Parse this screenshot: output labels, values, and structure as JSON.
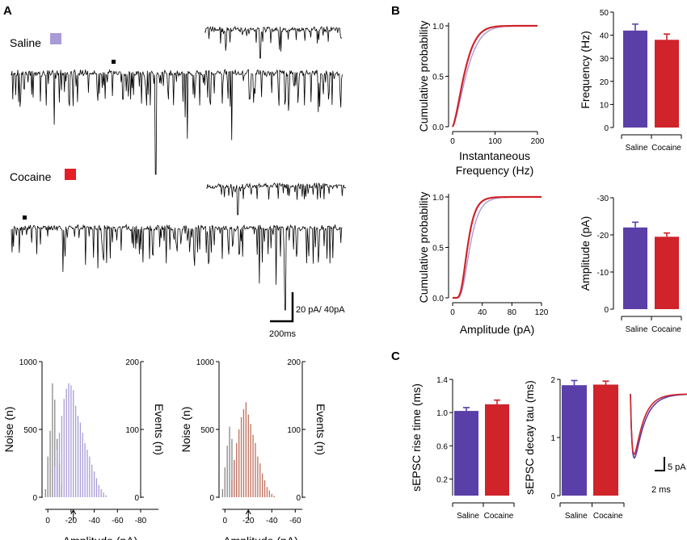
{
  "panels": {
    "a": "A",
    "b": "B",
    "c": "C"
  },
  "colors": {
    "saline": "#5b3fa8",
    "saline_light": "#a99bd6",
    "cocaine": "#d0232a",
    "cocaine_light": "#c0705e",
    "noise": "#888888"
  },
  "traces": {
    "saline_label": "Saline",
    "cocaine_label": "Cocaine",
    "scale_bar": {
      "y_label": "20 pA/ 40pA",
      "x_label": "200ms"
    }
  },
  "chart_data": [
    {
      "id": "hist_saline",
      "type": "bar",
      "xlabel": "Amplitude (pA)",
      "ylabel": "Noise (n)",
      "y2label": "Events (n)",
      "xticks": [
        "0",
        "-20",
        "-40",
        "-60",
        "-80"
      ],
      "yticks": [
        "0",
        "500",
        "1000"
      ],
      "y2ticks": [
        "0",
        "100",
        "200"
      ],
      "xlim": [
        5,
        -80
      ],
      "ylim": [
        0,
        1000
      ],
      "y2lim": [
        0,
        200
      ],
      "arrow_at": -22,
      "noise": {
        "x": [
          2,
          0,
          -2,
          -4,
          -6,
          -8,
          -10,
          -12
        ],
        "values": [
          60,
          300,
          490,
          840,
          720,
          430,
          250,
          90
        ]
      },
      "events": {
        "color": "saline_light",
        "x": [
          -6,
          -8,
          -10,
          -12,
          -14,
          -16,
          -18,
          -20,
          -22,
          -24,
          -26,
          -28,
          -30,
          -32,
          -34,
          -36,
          -38,
          -40,
          -42,
          -44,
          -46,
          -48,
          -50
        ],
        "values": [
          45,
          70,
          95,
          120,
          145,
          160,
          168,
          165,
          158,
          135,
          120,
          110,
          95,
          80,
          70,
          60,
          48,
          38,
          28,
          18,
          12,
          7,
          3
        ]
      }
    },
    {
      "id": "hist_cocaine",
      "type": "bar",
      "xlabel": "Amplitude (pA)",
      "ylabel": "Noise (n)",
      "y2label": "Events (n)",
      "xticks": [
        "0",
        "-20",
        "-40",
        "-60"
      ],
      "yticks": [
        "0",
        "500",
        "1000"
      ],
      "y2ticks": [
        "0",
        "100",
        "200"
      ],
      "xlim": [
        5,
        -66
      ],
      "ylim": [
        0,
        1000
      ],
      "y2lim": [
        0,
        200
      ],
      "arrow_at": -20,
      "noise": {
        "x": [
          2,
          0,
          -2,
          -4,
          -6,
          -8,
          -10
        ],
        "values": [
          60,
          220,
          380,
          520,
          430,
          270,
          120
        ]
      },
      "events": {
        "color": "cocaine_light",
        "x": [
          -6,
          -8,
          -10,
          -12,
          -14,
          -16,
          -18,
          -20,
          -22,
          -24,
          -26,
          -28,
          -30,
          -32,
          -34,
          -36,
          -38,
          -40,
          -42
        ],
        "values": [
          25,
          55,
          80,
          100,
          118,
          130,
          140,
          122,
          108,
          92,
          80,
          60,
          50,
          35,
          25,
          15,
          10,
          5,
          2
        ]
      }
    },
    {
      "id": "cdf_frequency",
      "type": "line",
      "xlabel": "Instantaneous Frequency (Hz)",
      "ylabel": "Cumulative probability",
      "xticks": [
        "0",
        "100",
        "200"
      ],
      "yticks": [
        "0.0",
        "0.5",
        "1.0"
      ],
      "xlim": [
        0,
        200
      ],
      "ylim": [
        0,
        1
      ],
      "series": [
        {
          "name": "Saline",
          "color": "saline_light",
          "k": 40
        },
        {
          "name": "Cocaine",
          "color": "cocaine",
          "k": 34
        }
      ]
    },
    {
      "id": "bar_frequency",
      "type": "bar",
      "ylabel": "Frequency (Hz)",
      "categories": [
        "Saline",
        "Cocaine"
      ],
      "values": [
        42,
        38
      ],
      "errors": [
        2.8,
        2.5
      ],
      "yticks": [
        "0",
        "10",
        "20",
        "30",
        "40",
        "50"
      ],
      "ylim": [
        0,
        50
      ],
      "colors": [
        "saline",
        "cocaine"
      ]
    },
    {
      "id": "cdf_amplitude",
      "type": "line",
      "xlabel": "Amplitude (pA)",
      "ylabel": "Cumulative probability",
      "xticks": [
        "0",
        "40",
        "80",
        "120"
      ],
      "yticks": [
        "0.0",
        "0.5",
        "1.0"
      ],
      "xlim": [
        0,
        120
      ],
      "ylim": [
        0,
        1
      ],
      "series": [
        {
          "name": "Saline",
          "color": "saline_light",
          "mu": 3.15,
          "sigma": 0.42
        },
        {
          "name": "Cocaine",
          "color": "cocaine",
          "mu": 3.0,
          "sigma": 0.4
        }
      ]
    },
    {
      "id": "bar_amplitude",
      "type": "bar",
      "ylabel": "Amplitude (pA)",
      "categories": [
        "Saline",
        "Cocaine"
      ],
      "values": [
        22,
        19.5
      ],
      "errors": [
        1.4,
        1.0
      ],
      "yticks": [
        "0",
        "-10",
        "-20",
        "-30"
      ],
      "ylim": [
        0,
        30
      ],
      "colors": [
        "saline",
        "cocaine"
      ]
    },
    {
      "id": "bar_rise",
      "type": "bar",
      "ylabel": "sEPSC rise time (ms)",
      "categories": [
        "Saline",
        "Cocaine"
      ],
      "values": [
        1.02,
        1.1
      ],
      "errors": [
        0.04,
        0.05
      ],
      "yticks": [
        "0.2",
        "0.6",
        "1.0",
        "1.4"
      ],
      "ytick_values": [
        0.2,
        0.6,
        1.0,
        1.4
      ],
      "ylim": [
        0,
        1.4
      ],
      "colors": [
        "saline",
        "cocaine"
      ]
    },
    {
      "id": "bar_decay",
      "type": "bar",
      "ylabel": "sEPSC decay tau (ms)",
      "categories": [
        "Saline",
        "Cocaine"
      ],
      "values": [
        1.9,
        1.91
      ],
      "errors": [
        0.08,
        0.06
      ],
      "yticks": [
        "0",
        "1",
        "2"
      ],
      "ylim": [
        0,
        2
      ],
      "colors": [
        "saline",
        "cocaine"
      ]
    }
  ],
  "epsc_scale": {
    "y_label": "5 pA",
    "x_label": "2 ms"
  }
}
